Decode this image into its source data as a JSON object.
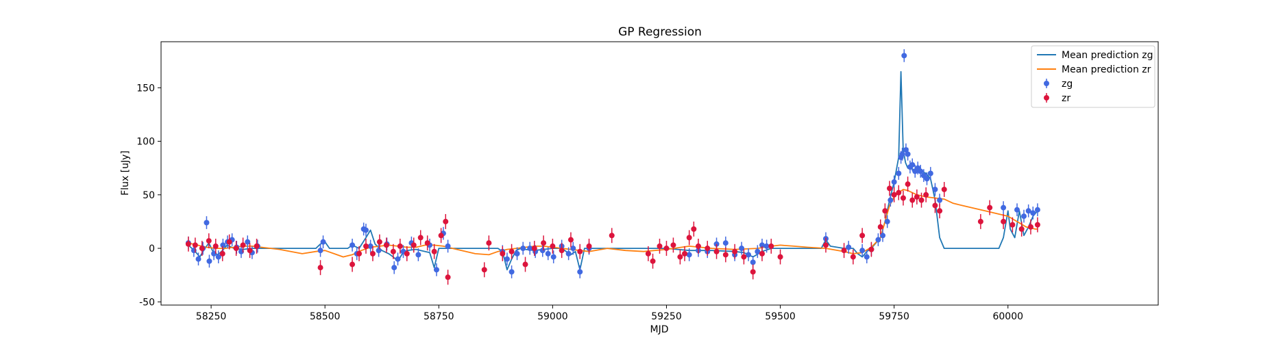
{
  "chart_data": {
    "type": "scatter",
    "title": "GP Regression",
    "xlabel": "MJD",
    "ylabel": "Flux [uJy]",
    "xlim": [
      58140,
      60330
    ],
    "ylim": [
      -53,
      193
    ],
    "xticks": [
      58250,
      58500,
      58750,
      59000,
      59250,
      59500,
      59750,
      60000
    ],
    "yticks": [
      -50,
      0,
      50,
      100,
      150
    ],
    "legend_position": "upper-right",
    "grid": false,
    "series": [
      {
        "name": "Mean prediction zg",
        "kind": "line",
        "color": "#1f77b4",
        "x": [
          58200,
          58215,
          58225,
          58235,
          58245,
          58255,
          58265,
          58275,
          58285,
          58300,
          58320,
          58340,
          58360,
          58400,
          58450,
          58480,
          58490,
          58500,
          58510,
          58550,
          58560,
          58575,
          58590,
          58600,
          58610,
          58625,
          58640,
          58650,
          58660,
          58670,
          58680,
          58700,
          58720,
          58730,
          58740,
          58750,
          58760,
          58775,
          58800,
          58850,
          58880,
          58890,
          58900,
          58910,
          58920,
          58930,
          58940,
          58960,
          58980,
          59000,
          59020,
          59030,
          59040,
          59050,
          59060,
          59070,
          59080,
          59100,
          59150,
          59200,
          59250,
          59300,
          59350,
          59400,
          59420,
          59440,
          59460,
          59480,
          59500,
          59550,
          59590,
          59600,
          59610,
          59640,
          59660,
          59670,
          59680,
          59690,
          59700,
          59710,
          59720,
          59730,
          59740,
          59750,
          59760,
          59765,
          59770,
          59775,
          59780,
          59790,
          59800,
          59810,
          59820,
          59830,
          59840,
          59850,
          59860,
          59870,
          59880,
          59900,
          59950,
          59980,
          59990,
          60000,
          60005,
          60015,
          60025,
          60035,
          60045,
          60055,
          60065
        ],
        "y": [
          3,
          -3,
          -8,
          -1,
          5,
          -4,
          -6,
          -2,
          3,
          0,
          -1,
          0,
          0,
          0,
          0,
          0,
          4,
          6,
          0,
          0,
          3,
          0,
          10,
          17,
          4,
          -2,
          -5,
          -8,
          -12,
          -5,
          -2,
          -1,
          -3,
          -4,
          -18,
          0,
          0,
          0,
          0,
          0,
          0,
          -3,
          -20,
          -10,
          -2,
          0,
          -1,
          -2,
          -1,
          0,
          0,
          -3,
          -6,
          -3,
          -20,
          0,
          0,
          0,
          0,
          0,
          0,
          -2,
          -2,
          -3,
          -4,
          -8,
          -3,
          0,
          0,
          0,
          0,
          8,
          2,
          0,
          0,
          -5,
          -8,
          -3,
          0,
          5,
          10,
          25,
          45,
          62,
          85,
          165,
          92,
          80,
          75,
          74,
          73,
          72,
          70,
          65,
          45,
          10,
          0,
          0,
          0,
          0,
          0,
          0,
          10,
          35,
          18,
          10,
          35,
          12,
          20,
          30,
          35
        ]
      },
      {
        "name": "Mean prediction zr",
        "kind": "line",
        "color": "#ff7f0e",
        "x": [
          58200,
          58220,
          58240,
          58260,
          58280,
          58300,
          58320,
          58340,
          58360,
          58400,
          58450,
          58480,
          58500,
          58520,
          58540,
          58560,
          58580,
          58600,
          58620,
          58640,
          58660,
          58680,
          58700,
          58720,
          58740,
          58760,
          58780,
          58800,
          58830,
          58860,
          58880,
          58900,
          58920,
          58940,
          58960,
          58980,
          59000,
          59040,
          59080,
          59120,
          59160,
          59200,
          59250,
          59300,
          59350,
          59400,
          59450,
          59480,
          59500,
          59530,
          59560,
          59600,
          59640,
          59660,
          59680,
          59700,
          59720,
          59730,
          59740,
          59750,
          59760,
          59770,
          59780,
          59790,
          59800,
          59820,
          59840,
          59860,
          59880,
          59900,
          59950,
          60000,
          60020,
          60040,
          60060,
          60065
        ],
        "y": [
          5,
          3,
          1,
          0,
          0,
          1,
          2,
          2,
          1,
          -1,
          -5,
          -3,
          -2,
          -5,
          -8,
          -6,
          -2,
          1,
          2,
          3,
          2,
          1,
          1,
          3,
          3,
          2,
          0,
          -2,
          -5,
          -6,
          -3,
          -1,
          0,
          1,
          2,
          2,
          1,
          -1,
          -3,
          0,
          -2,
          -3,
          -1,
          2,
          0,
          -1,
          0,
          2,
          3,
          2,
          1,
          0,
          -3,
          -5,
          -4,
          1,
          10,
          25,
          40,
          48,
          52,
          55,
          54,
          52,
          50,
          48,
          47,
          46,
          42,
          40,
          35,
          30,
          25,
          20,
          18,
          18
        ]
      },
      {
        "name": "zg",
        "kind": "errorbar",
        "color": "#4169e1",
        "x": [
          58200,
          58212,
          58222,
          58232,
          58240,
          58246,
          58256,
          58266,
          58276,
          58286,
          58296,
          58306,
          58316,
          58330,
          58340,
          58352,
          58490,
          58496,
          58560,
          58570,
          58585,
          58590,
          58600,
          58618,
          58636,
          58652,
          58660,
          58672,
          58690,
          58705,
          58730,
          58745,
          58760,
          58770,
          58890,
          58900,
          58910,
          58922,
          58935,
          58950,
          58962,
          58978,
          58990,
          59002,
          59020,
          59035,
          59045,
          59060,
          59080,
          59300,
          59320,
          59340,
          59360,
          59380,
          59400,
          59415,
          59430,
          59440,
          59450,
          59460,
          59470,
          59600,
          59650,
          59680,
          59690,
          59700,
          59715,
          59725,
          59735,
          59742,
          59750,
          59760,
          59765,
          59768,
          59772,
          59776,
          59780,
          59785,
          59790,
          59796,
          59802,
          59808,
          59815,
          59822,
          59830,
          59840,
          59850,
          59990,
          60020,
          60035,
          60045,
          60055,
          60065
        ],
        "y": [
          5,
          -2,
          -10,
          0,
          24,
          -12,
          -5,
          -8,
          3,
          6,
          8,
          1,
          -3,
          6,
          -4,
          2,
          -2,
          6,
          3,
          -5,
          18,
          17,
          2,
          -2,
          4,
          -18,
          -10,
          -3,
          5,
          -6,
          3,
          -20,
          14,
          2,
          -3,
          -10,
          -22,
          -5,
          0,
          0,
          -3,
          -2,
          -5,
          -8,
          2,
          -5,
          0,
          -22,
          0,
          -6,
          -2,
          -3,
          4,
          5,
          -6,
          0,
          -6,
          -13,
          -3,
          3,
          2,
          9,
          1,
          -2,
          -8,
          -1,
          8,
          12,
          25,
          45,
          62,
          70,
          85,
          88,
          180,
          92,
          88,
          76,
          78,
          72,
          75,
          72,
          68,
          65,
          70,
          55,
          45,
          38,
          36,
          30,
          35,
          33,
          36
        ]
      },
      {
        "name": "zr",
        "kind": "errorbar",
        "color": "#dc143c",
        "x": [
          58200,
          58215,
          58230,
          58245,
          58260,
          58275,
          58290,
          58305,
          58320,
          58335,
          58350,
          58490,
          58560,
          58575,
          58590,
          58605,
          58620,
          58635,
          58650,
          58665,
          58680,
          58695,
          58710,
          58725,
          58740,
          58755,
          58765,
          58770,
          58850,
          58860,
          58890,
          58910,
          58940,
          58960,
          58980,
          59000,
          59020,
          59040,
          59060,
          59080,
          59130,
          59210,
          59220,
          59235,
          59250,
          59265,
          59280,
          59290,
          59300,
          59310,
          59320,
          59340,
          59360,
          59380,
          59400,
          59420,
          59440,
          59460,
          59480,
          59500,
          59600,
          59640,
          59660,
          59680,
          59700,
          59720,
          59730,
          59740,
          59750,
          59760,
          59770,
          59780,
          59790,
          59800,
          59810,
          59820,
          59840,
          59850,
          59860,
          59940,
          59960,
          59990,
          60010,
          60030,
          60050,
          60065
        ],
        "y": [
          4,
          3,
          0,
          7,
          2,
          -5,
          6,
          0,
          3,
          -2,
          2,
          -18,
          -15,
          -5,
          2,
          -5,
          6,
          3,
          -3,
          2,
          -5,
          3,
          10,
          5,
          -3,
          12,
          25,
          -27,
          -20,
          5,
          -5,
          -3,
          -15,
          0,
          5,
          2,
          -2,
          8,
          -3,
          2,
          12,
          -5,
          -12,
          2,
          0,
          3,
          -8,
          -5,
          10,
          18,
          2,
          0,
          -3,
          -6,
          -3,
          -8,
          -22,
          -5,
          2,
          -8,
          3,
          -2,
          -8,
          12,
          -1,
          20,
          35,
          56,
          50,
          52,
          47,
          60,
          45,
          48,
          45,
          50,
          40,
          35,
          55,
          25,
          38,
          25,
          22,
          18,
          20,
          22
        ]
      }
    ]
  }
}
